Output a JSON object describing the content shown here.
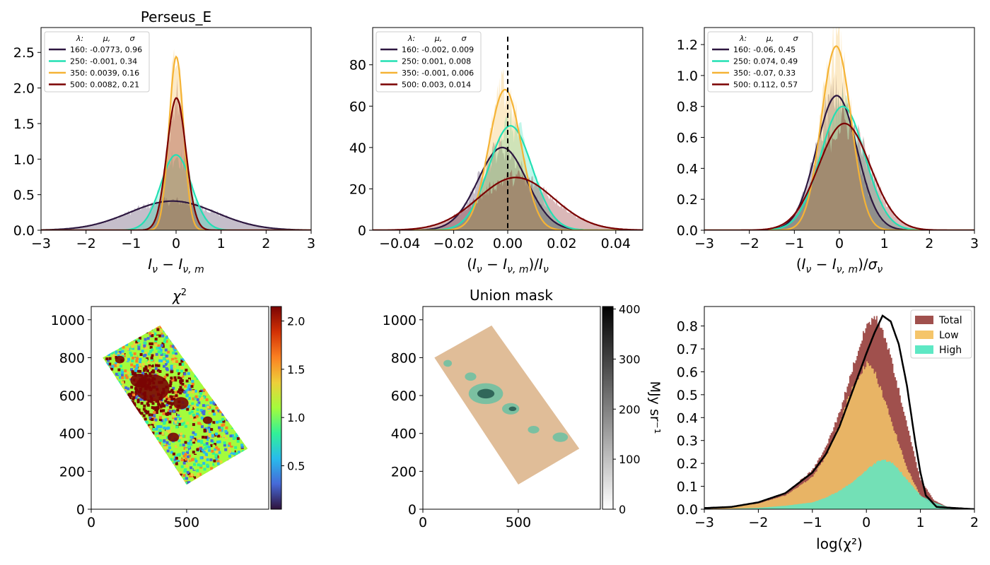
{
  "chart_data": [
    {
      "type": "line",
      "title": "Perseus_E",
      "xlabel": "I_ν − I_ν,m",
      "ylabel": "",
      "xlim": [
        -3,
        3
      ],
      "ylim": [
        0,
        2.85
      ],
      "xticks": [
        "−3",
        "−2",
        "−1",
        "0",
        "1",
        "2",
        "3"
      ],
      "yticks": [
        "0.0",
        "0.5",
        "1.0",
        "1.5",
        "2.0",
        "2.5"
      ],
      "legend": {
        "position": "top-left",
        "header": [
          "λ:",
          "μ,",
          "σ"
        ],
        "entries": [
          {
            "label": "160: -0.0773,  0.96",
            "color": "#2d1740"
          },
          {
            "label": "250: -0.001,  0.34",
            "color": "#22e0b4"
          },
          {
            "label": "350: 0.0039,  0.16",
            "color": "#f5b335"
          },
          {
            "label": "500: 0.0082,  0.21",
            "color": "#7a0000"
          }
        ]
      },
      "series": [
        {
          "name": "160",
          "mu": -0.0773,
          "sigma": 0.96,
          "peak": 0.41,
          "color": "#2d1740"
        },
        {
          "name": "250",
          "mu": -0.001,
          "sigma": 0.34,
          "peak": 1.06,
          "color": "#22e0b4"
        },
        {
          "name": "350",
          "mu": 0.0039,
          "sigma": 0.16,
          "peak": 2.44,
          "color": "#f5b335"
        },
        {
          "name": "500",
          "mu": 0.0082,
          "sigma": 0.21,
          "peak": 1.86,
          "color": "#7a0000"
        }
      ]
    },
    {
      "type": "line",
      "title": "",
      "xlabel": "(I_ν − I_ν,m)/I_ν",
      "ylabel": "",
      "xlim": [
        -0.05,
        0.05
      ],
      "ylim": [
        0,
        98
      ],
      "xticks": [
        "−0.04",
        "−0.02",
        "0.00",
        "0.02",
        "0.04"
      ],
      "yticks": [
        "0",
        "20",
        "40",
        "60",
        "80"
      ],
      "vline": 0,
      "legend": {
        "position": "top-left",
        "header": [
          "λ:",
          "μ,",
          "σ"
        ],
        "entries": [
          {
            "label": "160: -0.002,  0.009",
            "color": "#2d1740"
          },
          {
            "label": "250: 0.001,  0.008",
            "color": "#22e0b4"
          },
          {
            "label": "350: -0.001,  0.006",
            "color": "#f5b335"
          },
          {
            "label": "500: 0.003,  0.014",
            "color": "#7a0000"
          }
        ]
      },
      "series": [
        {
          "name": "160",
          "mu": -0.002,
          "sigma": 0.009,
          "peak": 40,
          "color": "#2d1740"
        },
        {
          "name": "250",
          "mu": 0.001,
          "sigma": 0.008,
          "peak": 50.5,
          "color": "#22e0b4"
        },
        {
          "name": "350",
          "mu": -0.001,
          "sigma": 0.006,
          "peak": 68,
          "color": "#f5b335"
        },
        {
          "name": "500",
          "mu": 0.003,
          "sigma": 0.014,
          "peak": 25.5,
          "color": "#7a0000"
        }
      ]
    },
    {
      "type": "line",
      "title": "",
      "xlabel": "(I_ν − I_ν,m)/σ_ν",
      "ylabel": "",
      "xlim": [
        -3,
        3
      ],
      "ylim": [
        0,
        1.31
      ],
      "xticks": [
        "−3",
        "−2",
        "−1",
        "0",
        "1",
        "2",
        "3"
      ],
      "yticks": [
        "0.0",
        "0.2",
        "0.4",
        "0.6",
        "0.8",
        "1.0",
        "1.2"
      ],
      "legend": {
        "position": "top-left",
        "header": [
          "λ:",
          "μ,",
          "σ"
        ],
        "entries": [
          {
            "label": "160: -0.06,  0.45",
            "color": "#2d1740"
          },
          {
            "label": "250: 0.074,  0.49",
            "color": "#22e0b4"
          },
          {
            "label": "350: -0.07,  0.33",
            "color": "#f5b335"
          },
          {
            "label": "500: 0.112,  0.57",
            "color": "#7a0000"
          }
        ]
      },
      "series": [
        {
          "name": "160",
          "mu": -0.06,
          "sigma": 0.45,
          "peak": 0.87,
          "color": "#2d1740"
        },
        {
          "name": "250",
          "mu": 0.074,
          "sigma": 0.49,
          "peak": 0.8,
          "color": "#22e0b4"
        },
        {
          "name": "350",
          "mu": -0.07,
          "sigma": 0.33,
          "peak": 1.19,
          "color": "#f5b335"
        },
        {
          "name": "500",
          "mu": 0.112,
          "sigma": 0.57,
          "peak": 0.69,
          "color": "#7a0000"
        }
      ]
    },
    {
      "type": "heatmap",
      "title": "χ²",
      "xlim": [
        0,
        930
      ],
      "ylim": [
        0,
        1070
      ],
      "xticks": [
        "0",
        "500"
      ],
      "yticks": [
        "0",
        "200",
        "400",
        "600",
        "800",
        "1000"
      ],
      "colorbar": {
        "ticks": [
          "0.5",
          "1.0",
          "1.5",
          "2.0"
        ],
        "range": [
          0.05,
          2.15
        ],
        "colormap": "turbo",
        "label": ""
      }
    },
    {
      "type": "heatmap",
      "title": "Union mask",
      "xlim": [
        0,
        930
      ],
      "ylim": [
        0,
        1070
      ],
      "xticks": [
        "0",
        "500"
      ],
      "yticks": [
        "0",
        "200",
        "400",
        "600",
        "800",
        "1000"
      ],
      "colorbar": {
        "ticks": [
          "0",
          "100",
          "200",
          "300",
          "400"
        ],
        "range": [
          0,
          405
        ],
        "colormap": "gray_r",
        "label": "MJy sr⁻¹"
      }
    },
    {
      "type": "area",
      "title": "",
      "xlabel": "log(χ²)",
      "ylabel": "",
      "xlim": [
        -3,
        2
      ],
      "ylim": [
        0,
        0.885
      ],
      "xticks": [
        "−3",
        "−2",
        "−1",
        "0",
        "1",
        "2"
      ],
      "yticks": [
        "0.0",
        "0.1",
        "0.2",
        "0.3",
        "0.4",
        "0.5",
        "0.6",
        "0.7",
        "0.8"
      ],
      "legend": {
        "position": "top-right",
        "entries": [
          {
            "label": "Total",
            "color": "#a0504d"
          },
          {
            "label": "Low",
            "color": "#f5c56a"
          },
          {
            "label": "High",
            "color": "#5ee8c4"
          }
        ]
      },
      "series": [
        {
          "name": "Total",
          "color": "#a0504d",
          "x": [
            -3,
            -2.5,
            -2,
            -1.5,
            -1,
            -0.75,
            -0.5,
            -0.25,
            0,
            0.15,
            0.3,
            0.5,
            0.75,
            1,
            1.25,
            1.5,
            2
          ],
          "y": [
            0.005,
            0.01,
            0.03,
            0.07,
            0.17,
            0.27,
            0.42,
            0.62,
            0.8,
            0.84,
            0.79,
            0.62,
            0.37,
            0.13,
            0.04,
            0.01,
            0.0
          ]
        },
        {
          "name": "Low",
          "color": "#f5c56a",
          "x": [
            -3,
            -2.5,
            -2,
            -1.5,
            -1,
            -0.75,
            -0.5,
            -0.25,
            0,
            0.15,
            0.3,
            0.5,
            0.75,
            1,
            1.25,
            1.5,
            2
          ],
          "y": [
            0.005,
            0.01,
            0.025,
            0.06,
            0.14,
            0.23,
            0.37,
            0.54,
            0.64,
            0.6,
            0.5,
            0.36,
            0.18,
            0.06,
            0.015,
            0.004,
            0.0
          ]
        },
        {
          "name": "High",
          "color": "#5ee8c4",
          "x": [
            -3,
            -2.5,
            -2,
            -1.5,
            -1,
            -0.75,
            -0.5,
            -0.25,
            0,
            0.15,
            0.3,
            0.5,
            0.75,
            1,
            1.25,
            1.5,
            2
          ],
          "y": [
            0.0,
            0.002,
            0.006,
            0.015,
            0.03,
            0.05,
            0.08,
            0.12,
            0.17,
            0.2,
            0.22,
            0.2,
            0.13,
            0.06,
            0.03,
            0.01,
            0.0
          ]
        },
        {
          "name": "fit",
          "color": "#000000",
          "x": [
            -3,
            -2.5,
            -2,
            -1.5,
            -1,
            -0.75,
            -0.5,
            -0.25,
            0,
            0.15,
            0.3,
            0.45,
            0.6,
            0.75,
            0.9,
            1.0,
            1.1,
            1.3,
            2
          ],
          "y": [
            0.005,
            0.01,
            0.03,
            0.07,
            0.16,
            0.24,
            0.36,
            0.52,
            0.68,
            0.77,
            0.845,
            0.82,
            0.72,
            0.54,
            0.3,
            0.16,
            0.06,
            0.01,
            0.0
          ]
        }
      ]
    }
  ]
}
